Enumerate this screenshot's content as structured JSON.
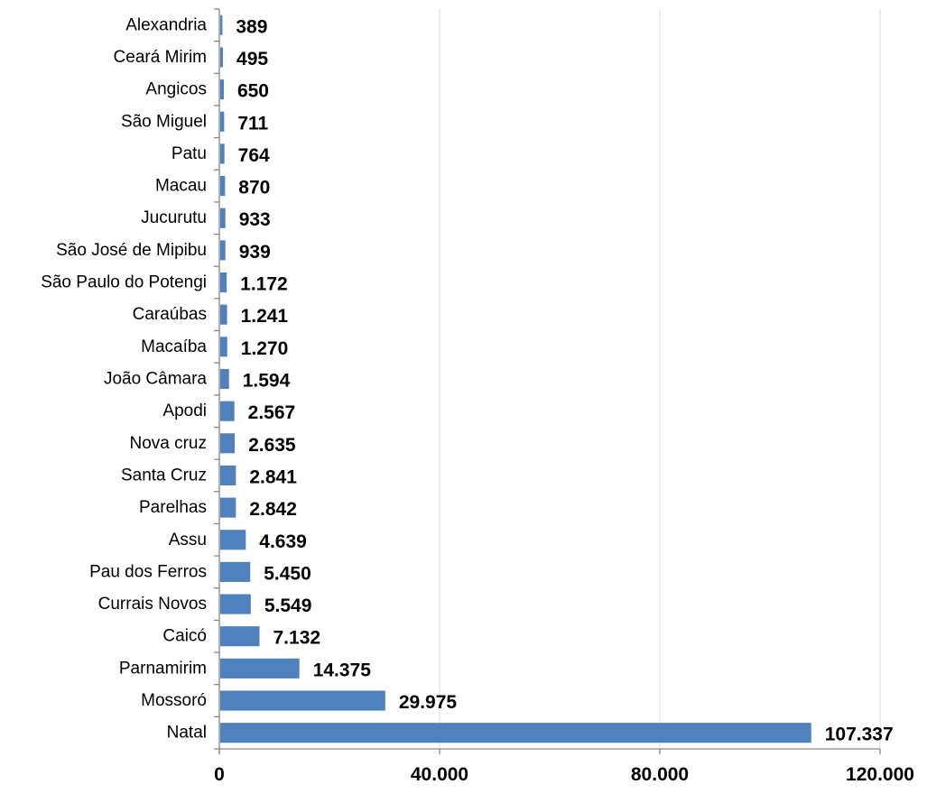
{
  "chart_data": {
    "type": "bar",
    "orientation": "horizontal",
    "title": "",
    "xlabel": "",
    "ylabel": "",
    "categories": [
      "Alexandria",
      "Ceará Mirim",
      "Angicos",
      "São Miguel",
      "Patu",
      "Macau",
      "Jucurutu",
      "São José de Mipibu",
      "São Paulo do Potengi",
      "Caraúbas",
      "Macaíba",
      "João Câmara",
      "Apodi",
      "Nova cruz",
      "Santa Cruz",
      "Parelhas",
      "Assu",
      "Pau dos Ferros",
      "Currais Novos",
      "Caicó",
      "Parnamirim",
      "Mossoró",
      "Natal"
    ],
    "values": [
      389,
      495,
      650,
      711,
      764,
      870,
      933,
      939,
      1172,
      1241,
      1270,
      1594,
      2567,
      2635,
      2841,
      2842,
      4639,
      5450,
      5549,
      7132,
      14375,
      29975,
      107337
    ],
    "value_labels": [
      "389",
      "495",
      "650",
      "711",
      "764",
      "870",
      "933",
      "939",
      "1.172",
      "1.241",
      "1.270",
      "1.594",
      "2.567",
      "2.635",
      "2.841",
      "2.842",
      "4.639",
      "5.450",
      "5.549",
      "7.132",
      "14.375",
      "29.975",
      "107.337"
    ],
    "xlim": [
      0,
      120000
    ],
    "xticks": [
      0,
      40000,
      80000,
      120000
    ],
    "xtick_labels": [
      "0",
      "40.000",
      "80.000",
      "120.000"
    ],
    "grid": "vertical",
    "legend": "none",
    "bar_color": "#4F81BD",
    "grid_color": "#D9D9D9",
    "axis_color": "#868686"
  }
}
